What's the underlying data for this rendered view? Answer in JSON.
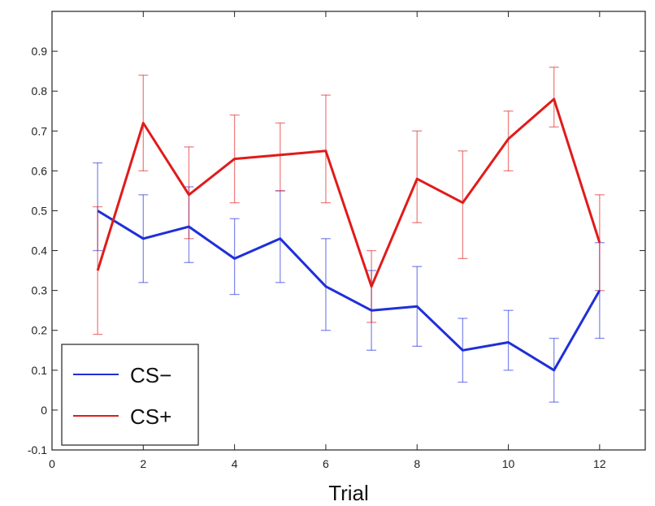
{
  "chart_data": {
    "type": "line",
    "title": "",
    "xlabel": "Trial",
    "ylabel": "",
    "xlim": [
      0,
      13
    ],
    "ylim": [
      -0.1,
      1.0
    ],
    "x_ticks": [
      0,
      2,
      4,
      6,
      8,
      10,
      12
    ],
    "y_ticks": [
      -0.1,
      0,
      0.1,
      0.2,
      0.3,
      0.4,
      0.5,
      0.6,
      0.7,
      0.8,
      0.9
    ],
    "x_tick_labels": [
      "0",
      "2",
      "4",
      "6",
      "8",
      "10",
      "12"
    ],
    "y_tick_labels": [
      "-0.1",
      "0",
      "0.1",
      "0.2",
      "0.3",
      "0.4",
      "0.5",
      "0.6",
      "0.7",
      "0.8",
      "0.9"
    ],
    "grid": false,
    "legend_position": "bottom-left",
    "x": [
      1,
      2,
      3,
      4,
      5,
      6,
      7,
      8,
      9,
      10,
      11,
      12
    ],
    "series": [
      {
        "name": "CS−",
        "color": "#1f2fd9",
        "values": [
          0.5,
          0.43,
          0.46,
          0.38,
          0.43,
          0.31,
          0.25,
          0.26,
          0.15,
          0.17,
          0.1,
          0.3
        ],
        "err_low": [
          0.4,
          0.32,
          0.37,
          0.29,
          0.32,
          0.2,
          0.15,
          0.16,
          0.07,
          0.1,
          0.02,
          0.18
        ],
        "err_high": [
          0.62,
          0.54,
          0.56,
          0.48,
          0.55,
          0.43,
          0.35,
          0.36,
          0.23,
          0.25,
          0.18,
          0.42
        ]
      },
      {
        "name": "CS+",
        "color": "#e01b1b",
        "values": [
          0.35,
          0.72,
          0.54,
          0.63,
          0.64,
          0.65,
          0.31,
          0.58,
          0.52,
          0.68,
          0.78,
          0.42
        ],
        "err_low": [
          0.19,
          0.6,
          0.43,
          0.52,
          0.55,
          0.52,
          0.22,
          0.47,
          0.38,
          0.6,
          0.71,
          0.3
        ],
        "err_high": [
          0.51,
          0.84,
          0.66,
          0.74,
          0.72,
          0.79,
          0.4,
          0.7,
          0.65,
          0.75,
          0.86,
          0.54
        ]
      }
    ]
  }
}
